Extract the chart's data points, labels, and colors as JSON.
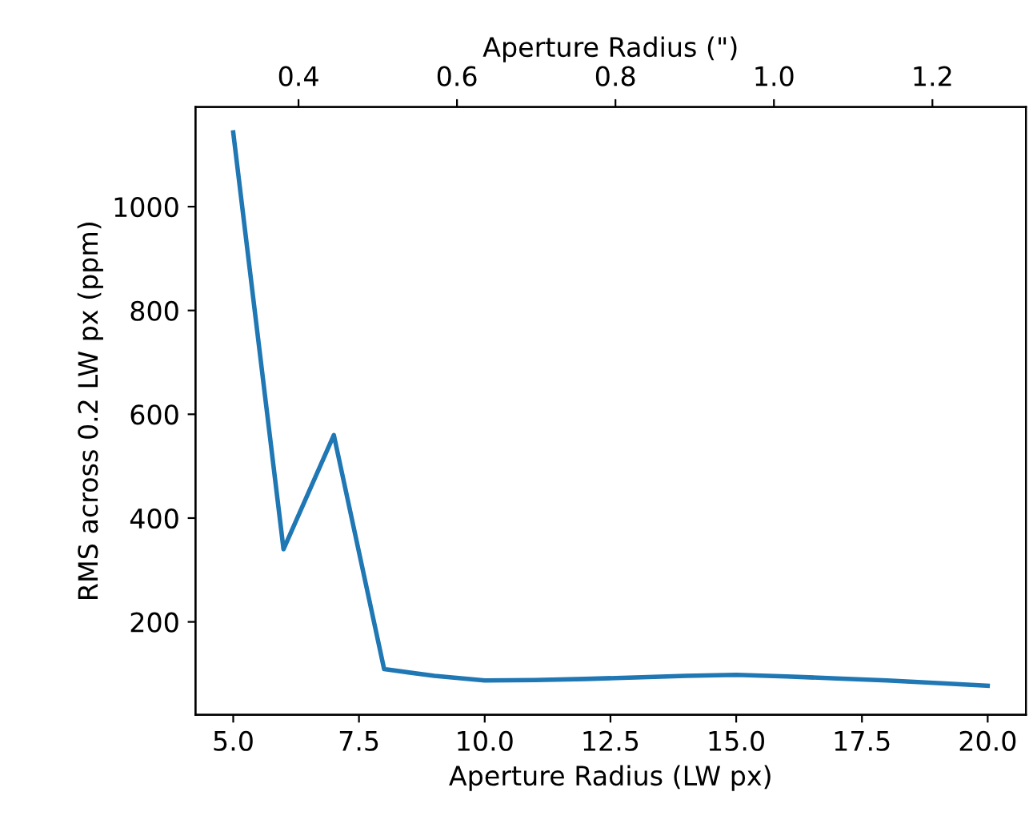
{
  "chart_data": {
    "type": "line",
    "xlabel": "Aperture Radius (LW px)",
    "ylabel": "RMS across 0.2 LW px (ppm)",
    "x2label": "Aperture Radius (\")",
    "x": [
      5,
      6,
      7,
      8,
      9,
      10,
      11,
      12,
      13,
      14,
      15,
      16,
      17,
      18,
      19,
      20
    ],
    "series": [
      {
        "color": "#1f77b4",
        "values": [
          1143,
          340,
          560,
          109,
          96,
          87,
          88,
          90,
          93,
          96,
          98,
          95,
          91,
          87,
          82,
          77
        ]
      }
    ],
    "xlim": [
      4.25,
      20.76
    ],
    "xticks": [
      {
        "value": 5,
        "label": "5.0"
      },
      {
        "value": 7.5,
        "label": "7.5"
      },
      {
        "value": 10,
        "label": "10.0"
      },
      {
        "value": 12.5,
        "label": "12.5"
      },
      {
        "value": 15,
        "label": "15.0"
      },
      {
        "value": 17.5,
        "label": "17.5"
      },
      {
        "value": 20,
        "label": "20.0"
      }
    ],
    "ylim": [
      21,
      1192
    ],
    "yticks": [
      200,
      400,
      600,
      800,
      1000
    ],
    "x2lim": [
      0.27,
      1.318
    ],
    "x2ticks": [
      0.4,
      0.6,
      0.8,
      {
        "value": 1.0,
        "label": "1.0"
      },
      1.2
    ],
    "grid": false,
    "marker": "none",
    "line_style": "solid"
  }
}
